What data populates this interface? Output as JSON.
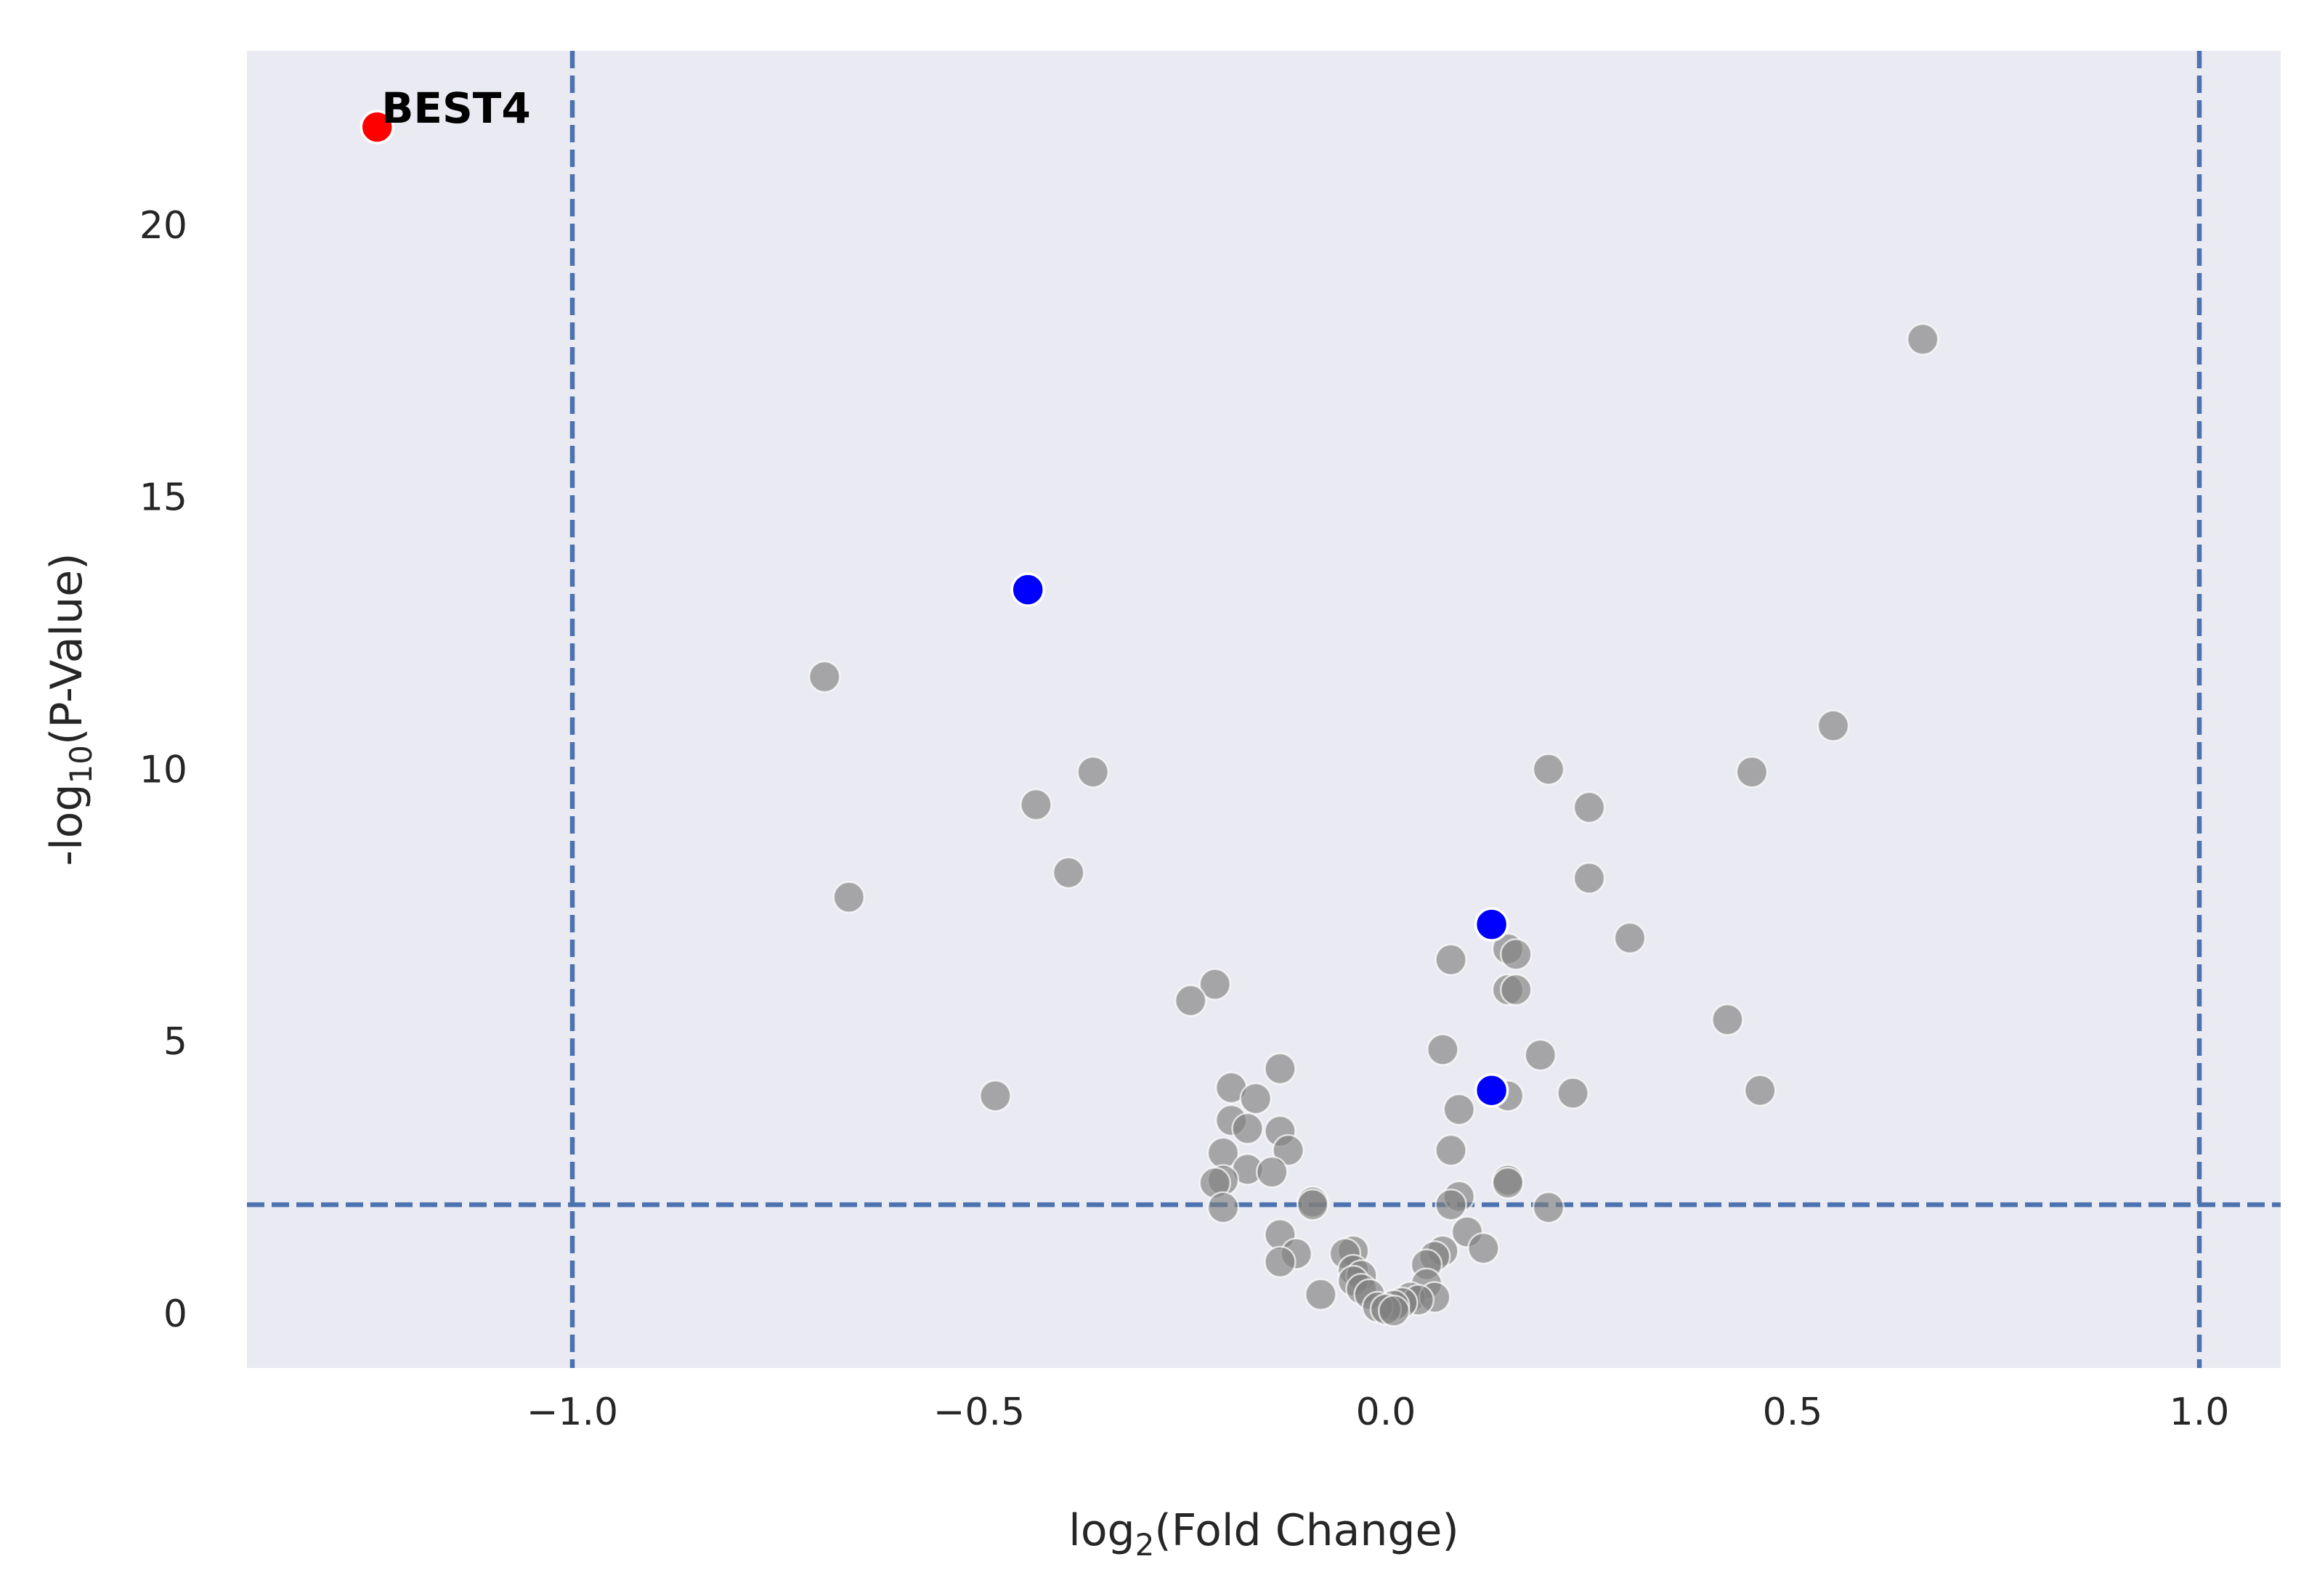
{
  "chart_data": {
    "type": "scatter",
    "title": "",
    "xlabel_prefix": "log",
    "xlabel_sub": "2",
    "xlabel_suffix": "(Fold Change)",
    "ylabel_prefix": "-log",
    "ylabel_sub": "10",
    "ylabel_suffix": "(P-Value)",
    "xlim": [
      -1.4,
      1.1
    ],
    "ylim": [
      -1.0,
      23.2
    ],
    "xticks": [
      -1.0,
      -0.5,
      0.0,
      0.5,
      1.0
    ],
    "xtick_labels": [
      "−1.0",
      "−0.5",
      "0.0",
      "0.5",
      "1.0"
    ],
    "yticks": [
      0,
      5,
      10,
      15,
      20
    ],
    "ytick_labels": [
      "0",
      "5",
      "10",
      "15",
      "20"
    ],
    "grid": false,
    "background": "#eaeaf2",
    "thresholds": {
      "vertical_x": [
        -1.0,
        1.0
      ],
      "horizontal_y": 2.0,
      "color": "#4c72b0"
    },
    "series": [
      {
        "role": "non-significant",
        "color": "#808080",
        "points": [
          [
            0.66,
            17.9
          ],
          [
            -0.69,
            11.7
          ],
          [
            0.55,
            10.8
          ],
          [
            -0.36,
            9.95
          ],
          [
            0.2,
            10.0
          ],
          [
            0.45,
            9.95
          ],
          [
            -0.43,
            9.35
          ],
          [
            0.25,
            9.3
          ],
          [
            -0.39,
            8.1
          ],
          [
            0.25,
            8.0
          ],
          [
            -0.66,
            7.65
          ],
          [
            0.3,
            6.9
          ],
          [
            0.15,
            6.7
          ],
          [
            0.16,
            6.6
          ],
          [
            0.08,
            6.5
          ],
          [
            -0.21,
            6.05
          ],
          [
            0.15,
            5.95
          ],
          [
            0.16,
            5.95
          ],
          [
            -0.24,
            5.75
          ],
          [
            0.42,
            5.4
          ],
          [
            0.07,
            4.85
          ],
          [
            0.19,
            4.75
          ],
          [
            -0.13,
            4.5
          ],
          [
            -0.19,
            4.15
          ],
          [
            0.46,
            4.1
          ],
          [
            0.23,
            4.05
          ],
          [
            -0.48,
            4.0
          ],
          [
            0.15,
            4.0
          ],
          [
            -0.16,
            3.95
          ],
          [
            0.09,
            3.75
          ],
          [
            -0.19,
            3.55
          ],
          [
            -0.17,
            3.4
          ],
          [
            -0.13,
            3.35
          ],
          [
            -0.12,
            3.0
          ],
          [
            0.08,
            3.0
          ],
          [
            -0.2,
            2.95
          ],
          [
            -0.17,
            2.65
          ],
          [
            -0.14,
            2.6
          ],
          [
            -0.2,
            2.45
          ],
          [
            -0.21,
            2.4
          ],
          [
            0.15,
            2.45
          ],
          [
            0.15,
            2.4
          ],
          [
            0.09,
            2.15
          ],
          [
            -0.09,
            2.05
          ],
          [
            0.08,
            2.0
          ],
          [
            -0.09,
            2.0
          ],
          [
            -0.2,
            1.95
          ],
          [
            0.2,
            1.95
          ],
          [
            0.1,
            1.5
          ],
          [
            -0.13,
            1.45
          ],
          [
            0.12,
            1.2
          ],
          [
            -0.11,
            1.1
          ],
          [
            -0.04,
            1.15
          ],
          [
            -0.05,
            1.1
          ],
          [
            0.07,
            1.15
          ],
          [
            0.06,
            1.05
          ],
          [
            -0.13,
            0.95
          ],
          [
            0.05,
            0.9
          ],
          [
            -0.04,
            0.8
          ],
          [
            -0.03,
            0.7
          ],
          [
            -0.04,
            0.6
          ],
          [
            0.05,
            0.55
          ],
          [
            -0.03,
            0.45
          ],
          [
            -0.08,
            0.35
          ],
          [
            -0.02,
            0.35
          ],
          [
            0.03,
            0.3
          ],
          [
            0.06,
            0.3
          ],
          [
            0.04,
            0.25
          ],
          [
            0.02,
            0.2
          ],
          [
            0.01,
            0.15
          ],
          [
            -0.01,
            0.12
          ],
          [
            0.0,
            0.08
          ],
          [
            0.01,
            0.05
          ]
        ]
      },
      {
        "role": "highlighted",
        "color": "#0000ff",
        "points": [
          [
            -0.44,
            13.3
          ],
          [
            0.13,
            7.15
          ],
          [
            0.13,
            4.1
          ]
        ]
      },
      {
        "role": "significant",
        "color": "#ff0000",
        "points": [
          [
            -1.24,
            21.8
          ]
        ]
      }
    ],
    "annotations": [
      {
        "text": "BEST4",
        "x": -1.24,
        "y": 21.8
      }
    ]
  }
}
